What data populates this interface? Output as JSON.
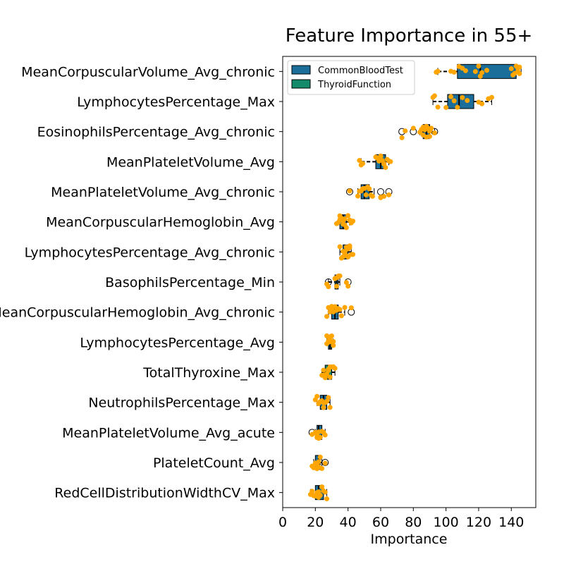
{
  "chart_data": {
    "type": "box",
    "title": "Feature Importance in 55+",
    "xlabel": "Importance",
    "ylabel": "",
    "xlim": [
      0,
      155
    ],
    "xticks": [
      0,
      20,
      40,
      60,
      80,
      100,
      120,
      140
    ],
    "orientation": "horizontal",
    "legend": {
      "position": "top-left",
      "entries": [
        {
          "name": "CommonBloodTest",
          "color": "#1a6e99"
        },
        {
          "name": "ThyroidFunction",
          "color": "#138a6a"
        }
      ]
    },
    "point_color": "#ffa500",
    "features": [
      {
        "name": "MeanCorpuscularVolume_Avg_chronic",
        "group": "CommonBloodTest",
        "whisker_low": 95,
        "q1": 107,
        "median": 121,
        "q3": 143,
        "whisker_high": 146,
        "outliers": [],
        "points": [
          103,
          105,
          108,
          110,
          112,
          118,
          120,
          121,
          122,
          125,
          140,
          141,
          142,
          143,
          144,
          144,
          145,
          145,
          94,
          95
        ]
      },
      {
        "name": "LymphocytesPercentage_Max",
        "group": "CommonBloodTest",
        "whisker_low": 92,
        "q1": 101,
        "median": 108,
        "q3": 117,
        "whisker_high": 128,
        "outliers": [],
        "points": [
          92,
          93,
          95,
          100,
          103,
          105,
          107,
          110,
          113,
          120,
          122,
          126,
          128
        ]
      },
      {
        "name": "EosinophilsPercentage_Avg_chronic",
        "group": "CommonBloodTest",
        "whisker_low": 84,
        "q1": 86,
        "median": 88,
        "q3": 90,
        "whisker_high": 93,
        "outliers": [
          73,
          80,
          93
        ],
        "points": [
          73,
          75,
          80,
          84,
          85,
          86,
          86,
          87,
          87,
          88,
          88,
          89,
          90,
          90,
          91,
          93
        ]
      },
      {
        "name": "MeanPlateletVolume_Avg",
        "group": "CommonBloodTest",
        "whisker_low": 48,
        "q1": 57,
        "median": 60,
        "q3": 63,
        "whisker_high": 65,
        "outliers": [],
        "points": [
          47,
          48,
          49,
          57,
          58,
          59,
          60,
          60,
          61,
          62,
          62,
          63,
          64,
          65,
          66
        ]
      },
      {
        "name": "MeanPlateletVolume_Avg_chronic",
        "group": "CommonBloodTest",
        "whisker_low": 46,
        "q1": 48,
        "median": 50,
        "q3": 53,
        "whisker_high": 56,
        "outliers": [
          41,
          60,
          65
        ],
        "points": [
          41,
          46,
          47,
          48,
          49,
          50,
          51,
          52,
          53,
          54,
          55,
          60,
          60,
          62,
          65
        ]
      },
      {
        "name": "MeanCorpuscularHemoglobin_Avg",
        "group": "CommonBloodTest",
        "whisker_low": 34,
        "q1": 35,
        "median": 37,
        "q3": 39,
        "whisker_high": 41,
        "outliers": [],
        "points": [
          33,
          34,
          35,
          35,
          36,
          36,
          37,
          37,
          38,
          38,
          39,
          40,
          41,
          42,
          43
        ]
      },
      {
        "name": "LymphocytesPercentage_Avg_chronic",
        "group": "CommonBloodTest",
        "whisker_low": 35,
        "q1": 37,
        "median": 39,
        "q3": 40,
        "whisker_high": 42,
        "outliers": [],
        "points": [
          35,
          36,
          37,
          37,
          38,
          38,
          39,
          39,
          40,
          40,
          41,
          41,
          42,
          43
        ]
      },
      {
        "name": "BasophilsPercentage_Min",
        "group": "CommonBloodTest",
        "whisker_low": 28,
        "q1": 32,
        "median": 33,
        "q3": 34,
        "whisker_high": 35,
        "outliers": [
          28,
          40
        ],
        "points": [
          27,
          28,
          32,
          33,
          33,
          34,
          34,
          35,
          39,
          40
        ]
      },
      {
        "name": "MeanCorpuscularHemoglobin_Avg_chronic",
        "group": "CommonBloodTest",
        "whisker_low": 28,
        "q1": 30,
        "median": 32,
        "q3": 34,
        "whisker_high": 38,
        "outliers": [
          42
        ],
        "points": [
          27,
          28,
          29,
          30,
          30,
          31,
          32,
          33,
          34,
          35,
          36,
          38,
          42
        ]
      },
      {
        "name": "LymphocytesPercentage_Avg",
        "group": "CommonBloodTest",
        "whisker_low": 27,
        "q1": 28,
        "median": 29,
        "q3": 30,
        "whisker_high": 31,
        "outliers": [],
        "points": [
          27,
          27,
          28,
          28,
          29,
          29,
          30,
          30,
          31,
          31
        ]
      },
      {
        "name": "TotalThyroxine_Max",
        "group": "ThyroidFunction",
        "whisker_low": 24,
        "q1": 26,
        "median": 28,
        "q3": 30,
        "whisker_high": 32,
        "outliers": [],
        "points": [
          24,
          25,
          26,
          26,
          27,
          28,
          28,
          29,
          29,
          30,
          31,
          32
        ]
      },
      {
        "name": "NeutrophilsPercentage_Max",
        "group": "CommonBloodTest",
        "whisker_low": 21,
        "q1": 23,
        "median": 25,
        "q3": 27,
        "whisker_high": 29,
        "outliers": [],
        "points": [
          20,
          21,
          22,
          23,
          24,
          25,
          25,
          26,
          27,
          28,
          29
        ]
      },
      {
        "name": "MeanPlateletVolume_Avg_acute",
        "group": "CommonBloodTest",
        "whisker_low": 20,
        "q1": 21,
        "median": 22,
        "q3": 24,
        "whisker_high": 26,
        "outliers": [
          18
        ],
        "points": [
          18,
          20,
          21,
          21,
          22,
          22,
          23,
          24,
          25,
          26
        ]
      },
      {
        "name": "PlateletCount_Avg",
        "group": "CommonBloodTest",
        "whisker_low": 19,
        "q1": 20,
        "median": 22,
        "q3": 23,
        "whisker_high": 24,
        "outliers": [
          26
        ],
        "points": [
          18,
          19,
          20,
          21,
          21,
          22,
          22,
          23,
          24,
          26
        ]
      },
      {
        "name": "RedCellDistributionWidthCV_Max",
        "group": "CommonBloodTest",
        "whisker_low": 17,
        "q1": 20,
        "median": 22,
        "q3": 25,
        "whisker_high": 27,
        "outliers": [],
        "points": [
          17,
          18,
          19,
          20,
          21,
          22,
          22,
          23,
          24,
          25,
          26,
          27
        ]
      }
    ]
  }
}
